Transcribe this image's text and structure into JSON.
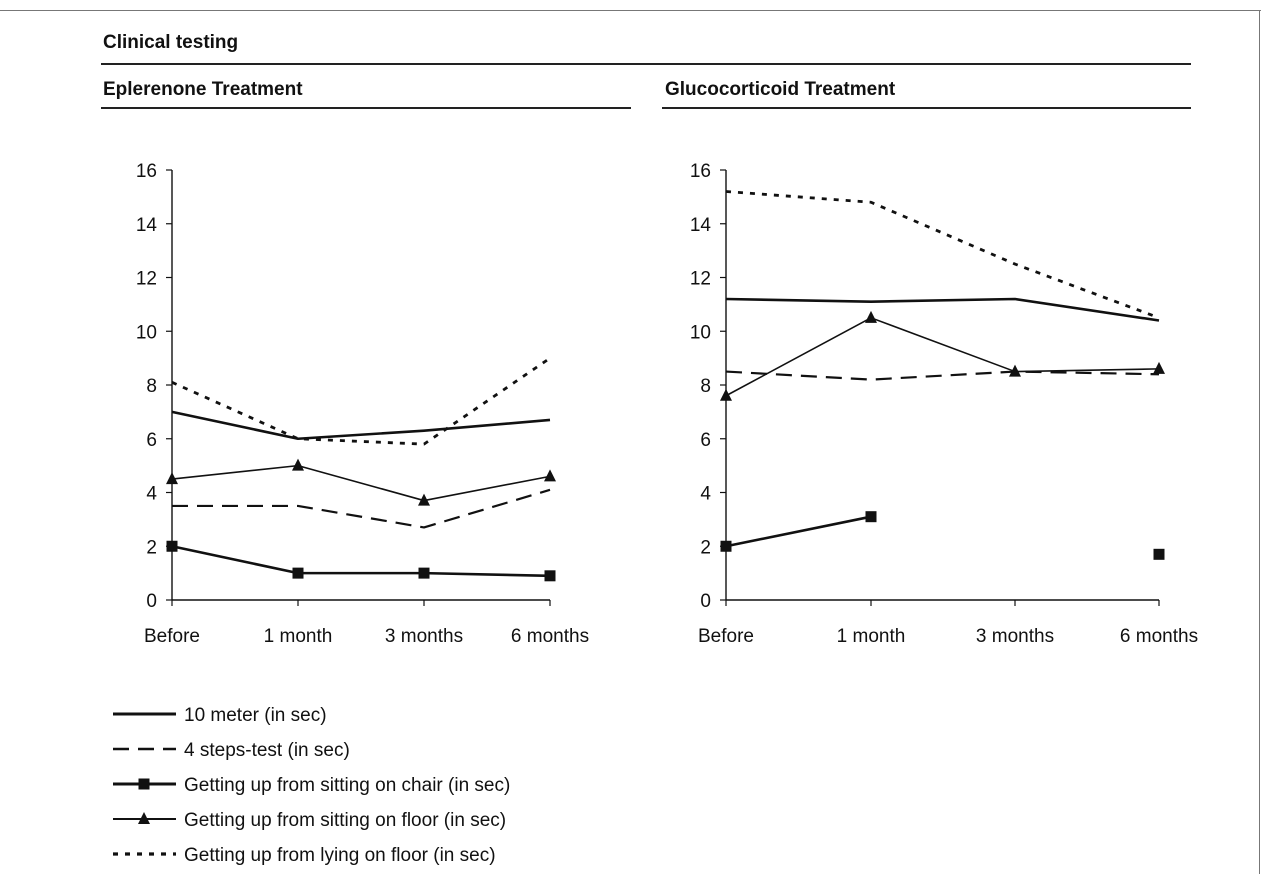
{
  "page": {
    "title": "Clinical testing"
  },
  "legend": [
    {
      "key": "ten_meter",
      "label": "10 meter (in sec)"
    },
    {
      "key": "four_steps",
      "label": "4 steps-test (in sec)"
    },
    {
      "key": "chair",
      "label": "Getting up from sitting on chair (in sec)"
    },
    {
      "key": "floor_sit",
      "label": "Getting up from sitting on floor (in sec)"
    },
    {
      "key": "floor_lie",
      "label": "Getting up from lying on floor (in sec)"
    }
  ],
  "chart_data": [
    {
      "type": "line",
      "title": "Eplerenone Treatment",
      "categories": [
        "Before",
        "1 month",
        "3 months",
        "6 months"
      ],
      "ylim": [
        0,
        16
      ],
      "yticks": [
        0,
        2,
        4,
        6,
        8,
        10,
        12,
        14,
        16
      ],
      "grid": false,
      "legend_position": "bottom-left",
      "series": [
        {
          "key": "ten_meter",
          "name": "10 meter (in sec)",
          "values": [
            7.0,
            6.0,
            6.3,
            6.7
          ]
        },
        {
          "key": "four_steps",
          "name": "4 steps-test (in sec)",
          "values": [
            3.5,
            3.5,
            2.7,
            4.1
          ]
        },
        {
          "key": "chair",
          "name": "Getting up from sitting on chair (in sec)",
          "values": [
            2.0,
            1.0,
            1.0,
            0.9
          ]
        },
        {
          "key": "floor_sit",
          "name": "Getting up from sitting on floor (in sec)",
          "values": [
            4.5,
            5.0,
            3.7,
            4.6
          ]
        },
        {
          "key": "floor_lie",
          "name": "Getting up from lying on floor (in sec)",
          "values": [
            8.1,
            6.0,
            5.8,
            9.0
          ]
        }
      ]
    },
    {
      "type": "line",
      "title": "Glucocorticoid Treatment",
      "categories": [
        "Before",
        "1 month",
        "3 months",
        "6 months"
      ],
      "ylim": [
        0,
        16
      ],
      "yticks": [
        0,
        2,
        4,
        6,
        8,
        10,
        12,
        14,
        16
      ],
      "grid": false,
      "legend_position": "bottom-left",
      "series": [
        {
          "key": "ten_meter",
          "name": "10 meter (in sec)",
          "values": [
            11.2,
            11.1,
            11.2,
            10.4
          ]
        },
        {
          "key": "four_steps",
          "name": "4 steps-test (in sec)",
          "values": [
            8.5,
            8.2,
            8.5,
            8.4
          ]
        },
        {
          "key": "chair",
          "name": "Getting up from sitting on chair (in sec)",
          "values": [
            2.0,
            3.1,
            null,
            1.7
          ]
        },
        {
          "key": "floor_sit",
          "name": "Getting up from sitting on floor (in sec)",
          "values": [
            7.6,
            10.5,
            8.5,
            8.6
          ]
        },
        {
          "key": "floor_lie",
          "name": "Getting up from lying on floor (in sec)",
          "values": [
            15.2,
            14.8,
            12.5,
            10.5
          ]
        }
      ]
    }
  ]
}
